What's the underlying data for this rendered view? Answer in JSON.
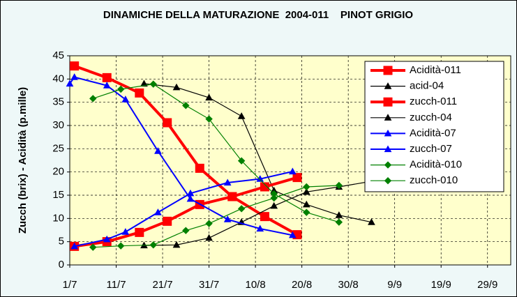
{
  "chart_data": {
    "type": "line",
    "title": "DINAMICHE DELLA MATURAZIONE  2004-011    PINOT GRIGIO",
    "ylabel": "Zucch (brix) - Acidità (p.mille)",
    "xlim": [
      0,
      95
    ],
    "xticks": [
      {
        "value": 0,
        "label": "1/7"
      },
      {
        "value": 10,
        "label": "11/7"
      },
      {
        "value": 20,
        "label": "21/7"
      },
      {
        "value": 30,
        "label": "31/7"
      },
      {
        "value": 40,
        "label": "10/8"
      },
      {
        "value": 50,
        "label": "20/8"
      },
      {
        "value": 60,
        "label": "30/8"
      },
      {
        "value": 70,
        "label": "9/9"
      },
      {
        "value": 80,
        "label": "19/9"
      },
      {
        "value": 90,
        "label": "29/9"
      }
    ],
    "ylim": [
      0,
      45
    ],
    "yticks": [
      0,
      5,
      10,
      15,
      20,
      25,
      30,
      35,
      40,
      45
    ],
    "grid": true,
    "legend": "upper right",
    "series": [
      {
        "name": "Acidità-011",
        "color": "#ff0000",
        "marker": "square",
        "width": 4,
        "x": [
          1,
          8,
          15,
          21,
          28,
          35,
          42,
          49
        ],
        "values": [
          42.8,
          40.3,
          37,
          30.6,
          20.8,
          14.7,
          10.4,
          6.5
        ]
      },
      {
        "name": "acid-04",
        "color": "#000000",
        "marker": "triangle",
        "width": 1.2,
        "x": [
          16,
          23,
          30,
          37,
          44,
          51,
          58,
          65
        ],
        "values": [
          39,
          38.2,
          36,
          32,
          16,
          13,
          10.7,
          9.2
        ]
      },
      {
        "name": "zucch-011",
        "color": "#ff0000",
        "marker": "square",
        "width": 4,
        "x": [
          1,
          8,
          15,
          21,
          28,
          35,
          42,
          49
        ],
        "values": [
          4,
          5,
          7,
          9.4,
          13,
          14.7,
          16.8,
          18.8
        ]
      },
      {
        "name": "zucch-04",
        "color": "#000000",
        "marker": "triangle",
        "width": 1.2,
        "x": [
          16,
          23,
          30,
          37,
          44,
          51,
          58,
          65
        ],
        "values": [
          4.2,
          4.3,
          5.8,
          9.2,
          12.7,
          15.7,
          16.8,
          18
        ]
      },
      {
        "name": "Acidità-07",
        "color": "#0000ff",
        "marker": "triangle",
        "width": 2,
        "x": [
          0,
          1,
          8,
          12,
          19,
          26,
          34,
          41,
          48
        ],
        "values": [
          39,
          40.4,
          38.6,
          35.6,
          24.5,
          14.2,
          9.8,
          7.8,
          6.4
        ]
      },
      {
        "name": "zucch-07",
        "color": "#0000ff",
        "marker": "triangle",
        "width": 2,
        "x": [
          1,
          8,
          12,
          19,
          26,
          34,
          41,
          48
        ],
        "values": [
          4,
          5.5,
          7.1,
          11.3,
          15.4,
          17.7,
          18.5,
          20.1
        ]
      },
      {
        "name": "Acidità-010",
        "color": "#008000",
        "marker": "diamond",
        "width": 1.2,
        "x": [
          5,
          11,
          18,
          25,
          30,
          37,
          44,
          51,
          58
        ],
        "values": [
          35.8,
          37.8,
          38.9,
          34.3,
          31.4,
          22.4,
          15.3,
          11.3,
          9.2
        ]
      },
      {
        "name": "zucch-010",
        "color": "#008000",
        "marker": "diamond",
        "width": 1.2,
        "x": [
          5,
          11,
          18,
          25,
          30,
          37,
          44,
          51,
          58
        ],
        "values": [
          3.8,
          4.1,
          4.3,
          7.4,
          8.9,
          12.1,
          14.4,
          16.8,
          17.1
        ]
      }
    ]
  }
}
